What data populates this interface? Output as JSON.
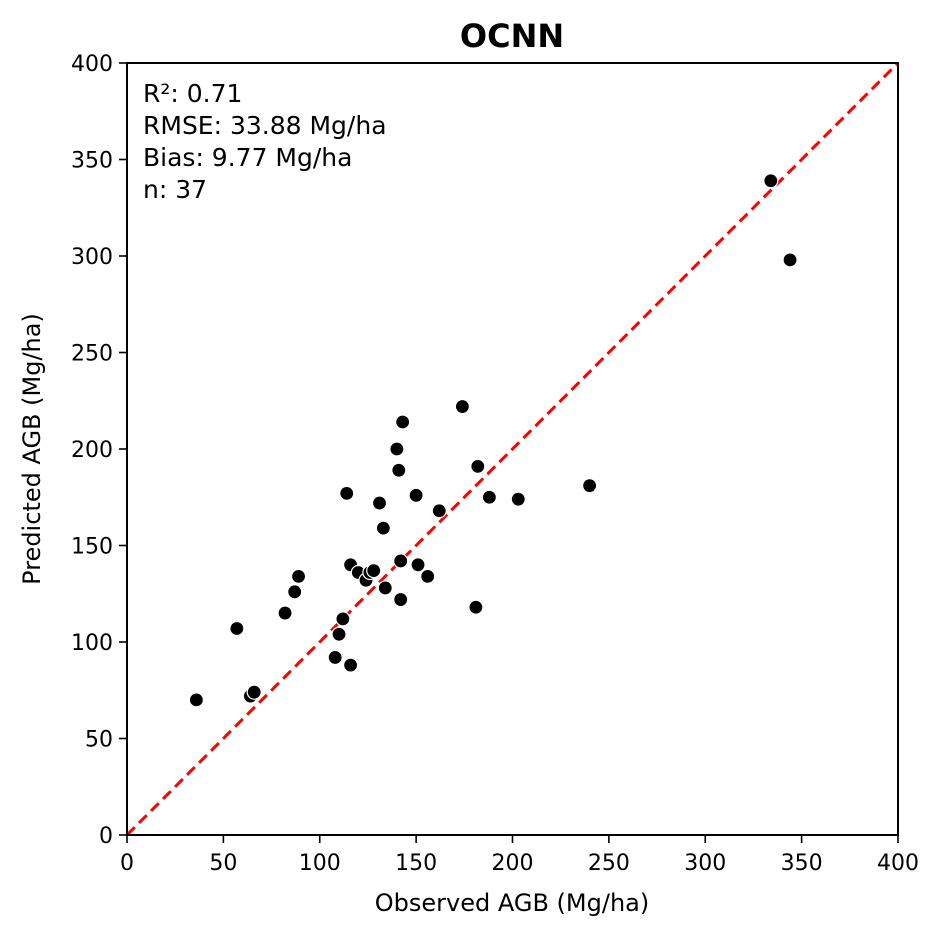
{
  "chart_data": {
    "type": "scatter",
    "title": "OCNN",
    "xlabel": "Observed AGB (Mg/ha)",
    "ylabel": "Predicted AGB (Mg/ha)",
    "xlim": [
      0,
      400
    ],
    "ylim": [
      0,
      400
    ],
    "xticks": [
      0,
      50,
      100,
      150,
      200,
      250,
      300,
      350,
      400
    ],
    "yticks": [
      0,
      50,
      100,
      150,
      200,
      250,
      300,
      350,
      400
    ],
    "grid": false,
    "reference_line": {
      "style": "dashed",
      "color": "#ff0000",
      "from": [
        0,
        0
      ],
      "to": [
        400,
        400
      ]
    },
    "marker_color": "#000000",
    "annotations": [
      "R²: 0.71",
      "RMSE: 33.88 Mg/ha",
      "Bias: 9.77 Mg/ha",
      "n: 37"
    ],
    "points": [
      [
        36,
        70
      ],
      [
        57,
        107
      ],
      [
        64,
        72
      ],
      [
        66,
        74
      ],
      [
        82,
        115
      ],
      [
        87,
        126
      ],
      [
        89,
        134
      ],
      [
        108,
        92
      ],
      [
        110,
        104
      ],
      [
        112,
        112
      ],
      [
        114,
        177
      ],
      [
        116,
        88
      ],
      [
        116,
        140
      ],
      [
        120,
        136
      ],
      [
        124,
        132
      ],
      [
        126,
        136
      ],
      [
        128,
        137
      ],
      [
        131,
        172
      ],
      [
        133,
        159
      ],
      [
        134,
        128
      ],
      [
        140,
        200
      ],
      [
        141,
        189
      ],
      [
        142,
        142
      ],
      [
        142,
        122
      ],
      [
        143,
        214
      ],
      [
        150,
        176
      ],
      [
        151,
        140
      ],
      [
        156,
        134
      ],
      [
        162,
        168
      ],
      [
        174,
        222
      ],
      [
        181,
        118
      ],
      [
        182,
        191
      ],
      [
        188,
        175
      ],
      [
        203,
        174
      ],
      [
        240,
        181
      ],
      [
        334,
        339
      ],
      [
        344,
        298
      ]
    ]
  }
}
